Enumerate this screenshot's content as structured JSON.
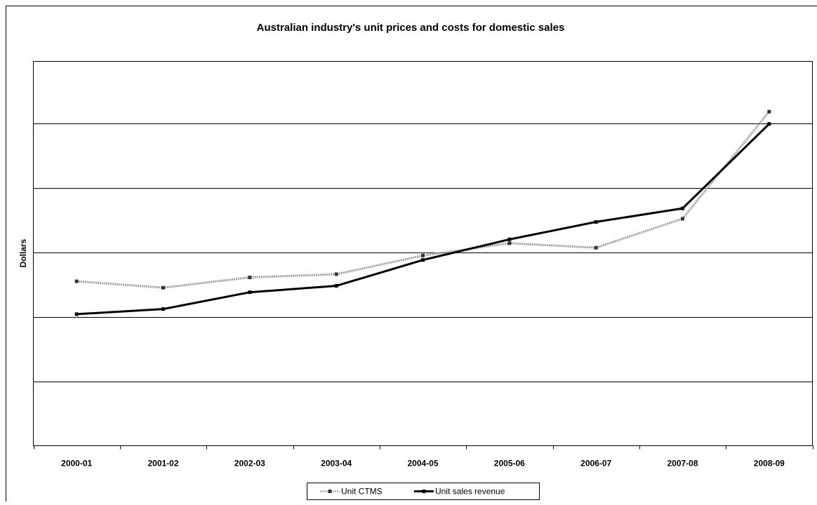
{
  "chart_data": {
    "type": "line",
    "title": "Australian industry's unit prices and costs for domestic sales",
    "y_label": "Dollars",
    "categories": [
      "2000-01",
      "2001-02",
      "2002-03",
      "2003-04",
      "2004-05",
      "2005-06",
      "2006-07",
      "2007-08",
      "2008-09"
    ],
    "series": [
      {
        "name": "Unit CTMS",
        "color": "#a0a0a0",
        "values": [
          2.55,
          2.45,
          2.61,
          2.66,
          2.95,
          3.14,
          3.07,
          3.52,
          5.18
        ]
      },
      {
        "name": "Unit sales revenue",
        "color": "#000000",
        "values": [
          2.04,
          2.12,
          2.38,
          2.48,
          2.88,
          3.2,
          3.47,
          3.68,
          4.99
        ]
      }
    ],
    "ylim": [
      0,
      5.96
    ],
    "ygrid": [
      1,
      2,
      3,
      4,
      5
    ],
    "grid": true,
    "legend": "bottom"
  }
}
